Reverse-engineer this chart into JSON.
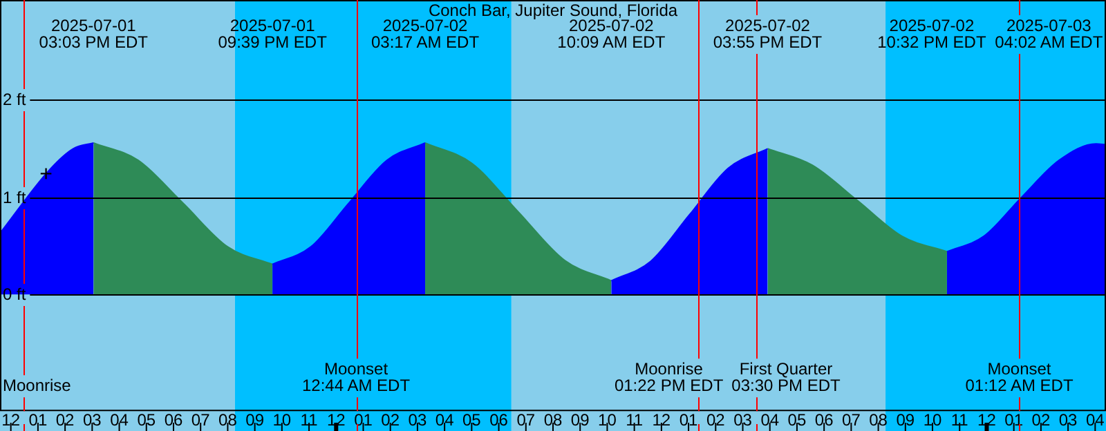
{
  "chart_data": {
    "type": "area",
    "title": "Conch Bar, Jupiter Sound, Florida",
    "series": [
      {
        "color": "#0000ff",
        "x": [
          "2025-07-01T11:36",
          "2025-07-01T13:27",
          "2025-07-01T14:18",
          "2025-07-01T15:03",
          null,
          "2025-07-01T21:39",
          "2025-07-01T23:04",
          "2025-07-02T00:28",
          "2025-07-02T01:52",
          "2025-07-02T03:17",
          null,
          "2025-07-02T10:09",
          "2025-07-02T11:36",
          "2025-07-02T13:02",
          "2025-07-02T14:28",
          "2025-07-02T15:55",
          null,
          "2025-07-02T22:32",
          "2025-07-02T23:54",
          "2025-07-03T01:17",
          "2025-07-03T02:40",
          "2025-07-03T04:02",
          "2025-07-03T04:24"
        ],
        "values": [
          0.63,
          1.29,
          1.5,
          1.56,
          null,
          0.31,
          0.49,
          0.94,
          1.38,
          1.56,
          null,
          0.14,
          0.34,
          0.82,
          1.3,
          1.5,
          null,
          0.44,
          0.6,
          1.0,
          1.38,
          1.55,
          1.54
        ]
      },
      {
        "color": "#2e8b57",
        "x": [
          "2025-07-01T15:03",
          "2025-07-01T16:42",
          "2025-07-01T18:21",
          "2025-07-01T20:00",
          "2025-07-01T21:39",
          null,
          "2025-07-02T03:17",
          "2025-07-02T05:00",
          "2025-07-02T06:43",
          "2025-07-02T08:26",
          "2025-07-02T10:09",
          null,
          "2025-07-02T15:55",
          "2025-07-02T17:34",
          "2025-07-02T19:13",
          "2025-07-02T20:52",
          "2025-07-02T22:32"
        ],
        "values": [
          1.56,
          1.38,
          0.94,
          0.49,
          0.31,
          null,
          1.56,
          1.35,
          0.85,
          0.35,
          0.14,
          null,
          1.5,
          1.33,
          0.97,
          0.6,
          0.44
        ]
      }
    ],
    "xlim": [
      "2025-07-01T11:36",
      "2025-07-03T04:24"
    ],
    "xticks": [
      {
        "value": "2025-07-01T12:00",
        "label": "12"
      },
      {
        "value": "2025-07-01T13:00",
        "label": "01"
      },
      {
        "value": "2025-07-01T14:00",
        "label": "02"
      },
      {
        "value": "2025-07-01T15:00",
        "label": "03"
      },
      {
        "value": "2025-07-01T16:00",
        "label": "04"
      },
      {
        "value": "2025-07-01T17:00",
        "label": "05"
      },
      {
        "value": "2025-07-01T18:00",
        "label": "06"
      },
      {
        "value": "2025-07-01T19:00",
        "label": "07"
      },
      {
        "value": "2025-07-01T20:00",
        "label": "08"
      },
      {
        "value": "2025-07-01T21:00",
        "label": "09"
      },
      {
        "value": "2025-07-01T22:00",
        "label": "10"
      },
      {
        "value": "2025-07-01T23:00",
        "label": "11"
      },
      {
        "value": "2025-07-02T00:00",
        "label": "12"
      },
      {
        "value": "2025-07-02T01:00",
        "label": "01"
      },
      {
        "value": "2025-07-02T02:00",
        "label": "02"
      },
      {
        "value": "2025-07-02T03:00",
        "label": "03"
      },
      {
        "value": "2025-07-02T04:00",
        "label": "04"
      },
      {
        "value": "2025-07-02T05:00",
        "label": "05"
      },
      {
        "value": "2025-07-02T06:00",
        "label": "06"
      },
      {
        "value": "2025-07-02T07:00",
        "label": "07"
      },
      {
        "value": "2025-07-02T08:00",
        "label": "08"
      },
      {
        "value": "2025-07-02T09:00",
        "label": "09"
      },
      {
        "value": "2025-07-02T10:00",
        "label": "10"
      },
      {
        "value": "2025-07-02T11:00",
        "label": "11"
      },
      {
        "value": "2025-07-02T12:00",
        "label": "12"
      },
      {
        "value": "2025-07-02T13:00",
        "label": "01"
      },
      {
        "value": "2025-07-02T14:00",
        "label": "02"
      },
      {
        "value": "2025-07-02T15:00",
        "label": "03"
      },
      {
        "value": "2025-07-02T16:00",
        "label": "04"
      },
      {
        "value": "2025-07-02T17:00",
        "label": "05"
      },
      {
        "value": "2025-07-02T18:00",
        "label": "06"
      },
      {
        "value": "2025-07-02T19:00",
        "label": "07"
      },
      {
        "value": "2025-07-02T20:00",
        "label": "08"
      },
      {
        "value": "2025-07-02T21:00",
        "label": "09"
      },
      {
        "value": "2025-07-02T22:00",
        "label": "10"
      },
      {
        "value": "2025-07-02T23:00",
        "label": "11"
      },
      {
        "value": "2025-07-03T00:00",
        "label": "12"
      },
      {
        "value": "2025-07-03T01:00",
        "label": "01"
      },
      {
        "value": "2025-07-03T02:00",
        "label": "02"
      },
      {
        "value": "2025-07-03T03:00",
        "label": "03"
      },
      {
        "value": "2025-07-03T04:00",
        "label": "04"
      }
    ],
    "ylim": [
      -1.2,
      3.03
    ],
    "yticks": [
      {
        "value": 0,
        "label": "0 ft"
      },
      {
        "value": 1,
        "label": "1 ft"
      },
      {
        "value": 2,
        "label": "2 ft"
      }
    ],
    "grid": "y",
    "bands": [
      {
        "axis": "x",
        "from": "2025-07-01T11:36",
        "to": "2025-07-01T20:16",
        "color": "#87ceeb"
      },
      {
        "axis": "x",
        "from": "2025-07-01T20:16",
        "to": "2025-07-02T06:28",
        "color": "#00bfff"
      },
      {
        "axis": "x",
        "from": "2025-07-02T06:28",
        "to": "2025-07-02T20:16",
        "color": "#87ceeb"
      },
      {
        "axis": "x",
        "from": "2025-07-02T20:16",
        "to": "2025-07-03T04:24",
        "color": "#00bfff"
      }
    ],
    "ref_lines": [
      {
        "axis": "x",
        "value": "2025-07-01T12:28",
        "label": "Moonrise",
        "color": "#ff0000"
      },
      {
        "axis": "x",
        "value": "2025-07-02T00:44",
        "label": "Moonset\n12:44 AM EDT",
        "color": "#ff0000"
      },
      {
        "axis": "x",
        "value": "2025-07-02T13:22",
        "label": "Moonrise\n01:22 PM EDT",
        "color": "#ff0000"
      },
      {
        "axis": "x",
        "value": "2025-07-02T15:30",
        "label": "First Quarter\n03:30 PM EDT",
        "color": "#ff0000"
      },
      {
        "axis": "x",
        "value": "2025-07-03T01:12",
        "label": "Moonset\n01:12 AM EDT",
        "color": "#ff0000"
      }
    ],
    "annotations": [
      "2025-07-01\n03:03 PM EDT",
      "2025-07-01\n09:39 PM EDT",
      "2025-07-02\n03:17 AM EDT",
      "2025-07-02\n10:09 AM EDT",
      "2025-07-02\n03:55 PM EDT",
      "2025-07-02\n10:32 PM EDT",
      "2025-07-03\n04:02 AM EDT",
      {
        "text": "+",
        "x": "2025-07-01T13:27",
        "y": 1.29
      }
    ]
  }
}
